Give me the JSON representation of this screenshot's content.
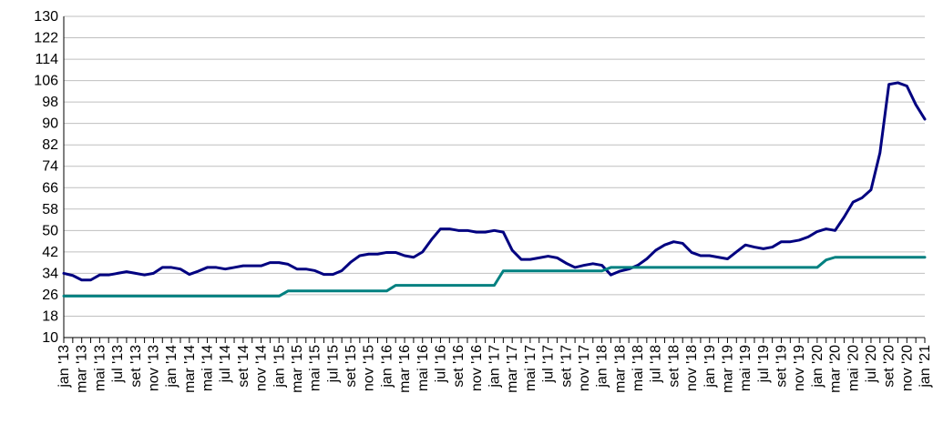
{
  "chart_data": {
    "type": "line",
    "title": "",
    "xlabel": "",
    "ylabel": "",
    "ylim": [
      10,
      130
    ],
    "yticks": [
      10,
      18,
      26,
      34,
      42,
      50,
      58,
      66,
      74,
      82,
      90,
      98,
      106,
      114,
      122,
      130
    ],
    "grid": "horizontal",
    "legend": "none",
    "x_tick_labels": [
      "jan '13",
      "mar '13",
      "mai '13",
      "jul '13",
      "set '13",
      "nov '13",
      "jan '14",
      "mar '14",
      "mai '14",
      "jul '14",
      "set '14",
      "nov '14",
      "jan '15",
      "mar '15",
      "mai '15",
      "jul '15",
      "set '15",
      "nov '15",
      "jan '16",
      "mar '16",
      "mai '16",
      "jul '16",
      "set '16",
      "nov '16",
      "jan '17",
      "mar '17",
      "mai '17",
      "jul '17",
      "set '17",
      "nov '17",
      "jan '18",
      "mar '18",
      "mai '18",
      "jul '18",
      "set '18",
      "nov '18",
      "jan '19",
      "mar '19",
      "mai '19",
      "jul '19",
      "set '19",
      "nov '19",
      "jan '20",
      "mar '20",
      "mai '20",
      "jul '20",
      "set '20",
      "nov '20",
      "jan '21"
    ],
    "series": [
      {
        "color": "#000080",
        "values": [
          34.0,
          33.2,
          31.5,
          31.5,
          33.4,
          33.4,
          34.0,
          34.6,
          34.0,
          33.4,
          34.0,
          36.2,
          36.2,
          35.6,
          33.6,
          34.8,
          36.2,
          36.2,
          35.6,
          36.2,
          36.8,
          36.8,
          36.8,
          38.0,
          38.0,
          37.4,
          35.6,
          35.6,
          35.0,
          33.6,
          33.6,
          35.0,
          38.2,
          40.6,
          41.2,
          41.2,
          41.8,
          41.8,
          40.6,
          40.0,
          42.0,
          46.6,
          50.6,
          50.6,
          50.0,
          50.0,
          49.4,
          49.4,
          50.0,
          49.4,
          42.6,
          39.2,
          39.2,
          39.8,
          40.4,
          39.8,
          37.8,
          36.2,
          37.0,
          37.6,
          37.0,
          33.4,
          34.8,
          35.6,
          37.0,
          39.4,
          42.6,
          44.6,
          45.8,
          45.2,
          41.8,
          40.6,
          40.6,
          40.0,
          39.4,
          42.0,
          44.6,
          43.8,
          43.2,
          43.8,
          45.8,
          45.8,
          46.4,
          47.6,
          49.6,
          50.6,
          50.0,
          55.0,
          60.6,
          62.2,
          65.2,
          79.0,
          104.6,
          105.2,
          104.0,
          97.0,
          91.6
        ]
      },
      {
        "color": "#008080",
        "values": [
          25.5,
          25.5,
          25.5,
          25.5,
          25.5,
          25.5,
          25.5,
          25.5,
          25.5,
          25.5,
          25.5,
          25.5,
          25.5,
          25.5,
          25.5,
          25.5,
          25.5,
          25.5,
          25.5,
          25.5,
          25.5,
          25.5,
          25.5,
          25.5,
          25.5,
          27.4,
          27.4,
          27.4,
          27.4,
          27.4,
          27.4,
          27.4,
          27.4,
          27.4,
          27.4,
          27.4,
          27.4,
          29.5,
          29.5,
          29.5,
          29.5,
          29.5,
          29.5,
          29.5,
          29.5,
          29.5,
          29.5,
          29.5,
          29.5,
          34.9,
          34.9,
          34.9,
          34.9,
          34.9,
          34.9,
          34.9,
          34.9,
          34.9,
          34.9,
          34.9,
          34.9,
          36.2,
          36.2,
          36.2,
          36.2,
          36.2,
          36.2,
          36.2,
          36.2,
          36.2,
          36.2,
          36.2,
          36.2,
          36.2,
          36.2,
          36.2,
          36.2,
          36.2,
          36.2,
          36.2,
          36.2,
          36.2,
          36.2,
          36.2,
          36.2,
          39.0,
          40.0,
          40.0,
          40.0,
          40.0,
          40.0,
          40.0,
          40.0,
          40.0,
          40.0,
          40.0,
          40.0
        ]
      }
    ]
  }
}
